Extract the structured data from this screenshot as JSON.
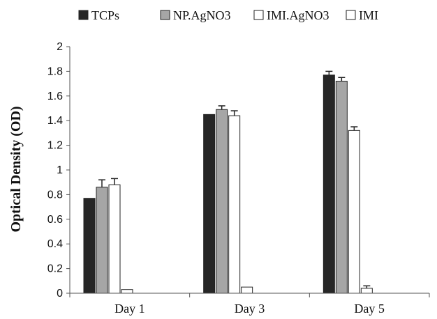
{
  "chart_data": {
    "type": "bar",
    "title": "",
    "xlabel": "",
    "ylabel": "Optical Density (OD)",
    "ylim": [
      0,
      2
    ],
    "yticks": [
      "0",
      "0.2",
      "0.4",
      "0.6",
      "0.8",
      "1",
      "1.2",
      "1.4",
      "1.6",
      "1.8",
      "2"
    ],
    "categories": [
      "Day 1",
      "Day 3",
      "Day 5"
    ],
    "legend_position": "top",
    "grid": false,
    "series": [
      {
        "name": "TCPs",
        "color": "#262626",
        "values": [
          0.77,
          1.45,
          1.77
        ],
        "errors": [
          0.0,
          0.0,
          0.03
        ]
      },
      {
        "name": "NP.AgNO3",
        "color": "#a6a6a6",
        "values": [
          0.86,
          1.49,
          1.72
        ],
        "errors": [
          0.06,
          0.03,
          0.03
        ]
      },
      {
        "name": "IMI.AgNO3",
        "color": "#ffffff",
        "values": [
          0.88,
          1.44,
          1.32
        ],
        "errors": [
          0.05,
          0.04,
          0.03
        ]
      },
      {
        "name": "IMI",
        "color": "#ffffff",
        "values": [
          0.03,
          0.05,
          0.04
        ],
        "errors": [
          0.0,
          0.0,
          0.02
        ]
      }
    ]
  }
}
